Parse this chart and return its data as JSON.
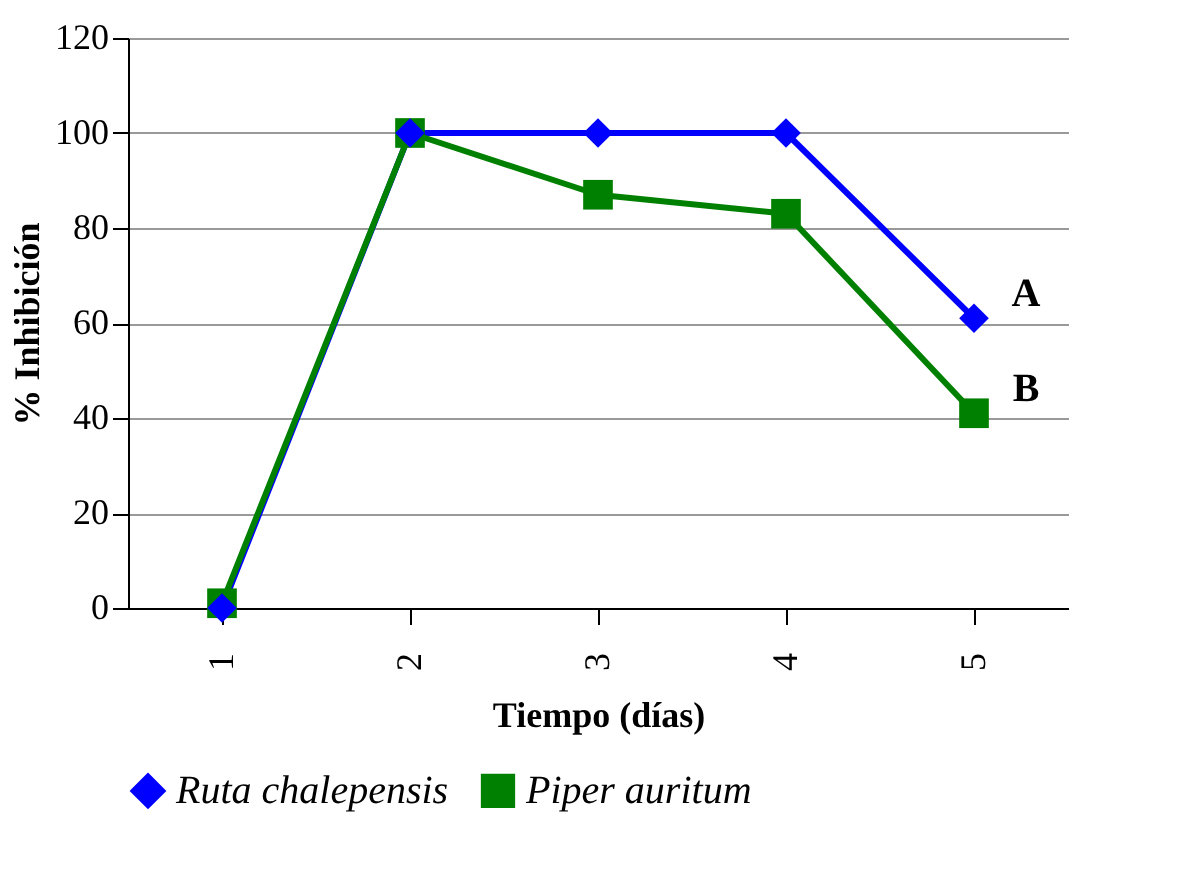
{
  "chart_data": {
    "type": "line",
    "xlabel": "Tiempo (días)",
    "ylabel": "% Inhibición",
    "categories": [
      "1",
      "2",
      "3",
      "4",
      "5"
    ],
    "series": [
      {
        "name": "Ruta chalepensis",
        "color": "#0000ff",
        "marker": "diamond",
        "values": [
          0,
          100,
          100,
          100,
          61
        ]
      },
      {
        "name": "Piper auritum",
        "color": "#008000",
        "marker": "square",
        "values": [
          1,
          100,
          87,
          83,
          41
        ]
      }
    ],
    "ylim": [
      0,
      120
    ],
    "yticks": [
      0,
      20,
      40,
      60,
      80,
      100,
      120
    ],
    "grid": "y",
    "legend": "bottom",
    "line_style": "solid",
    "annotations": [
      {
        "text": "A",
        "x": "5",
        "y": 61
      },
      {
        "text": "B",
        "x": "5",
        "y": 41
      }
    ]
  }
}
